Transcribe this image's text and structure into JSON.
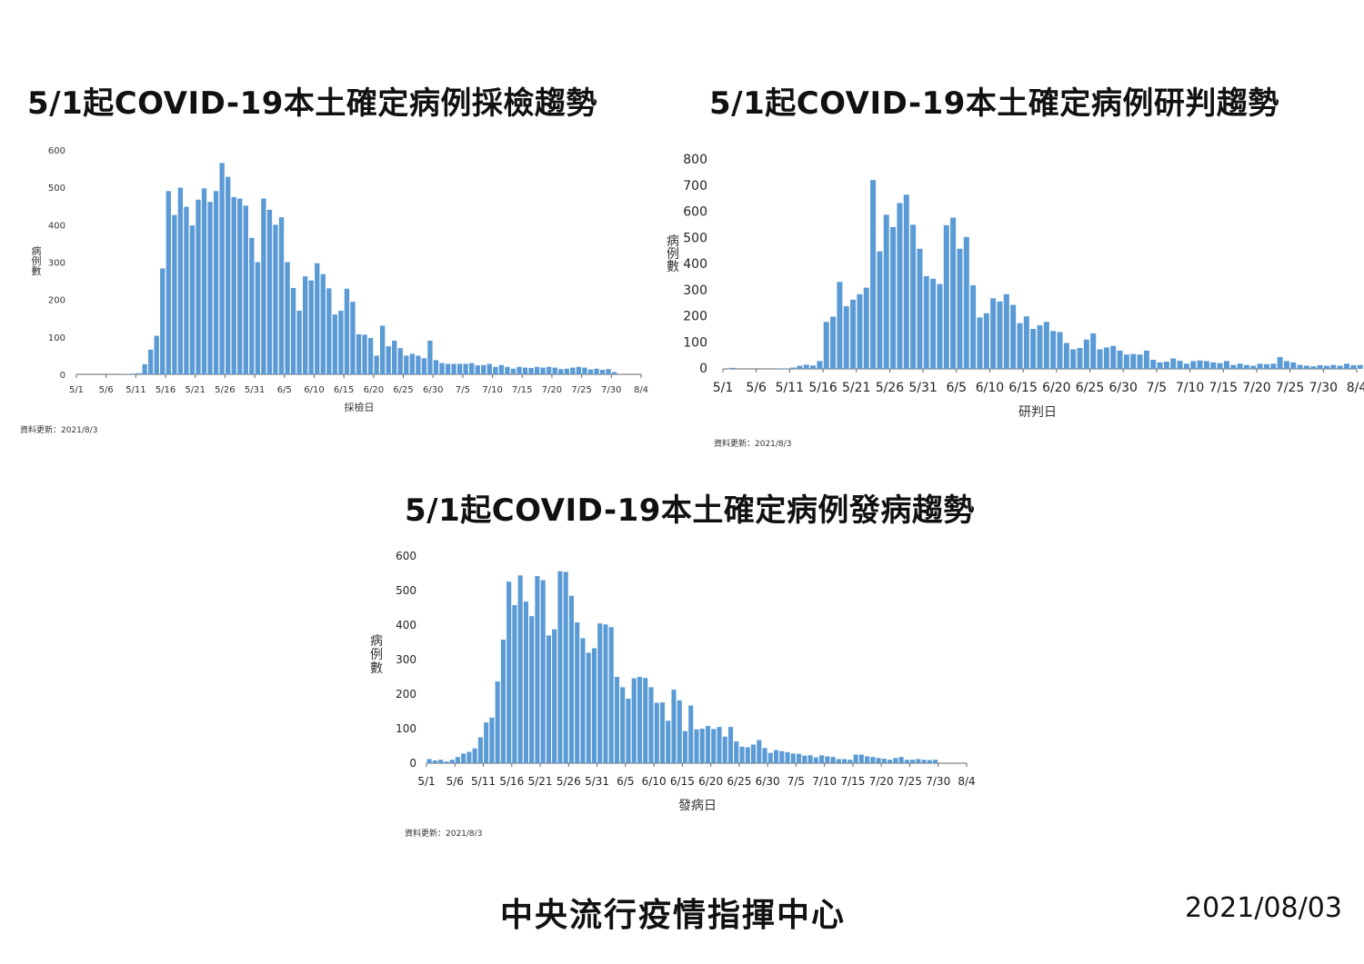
{
  "page": {
    "footer_org": "中央流行疫情指揮中心",
    "footer_date": "2021/08/03",
    "bar_color": "#5b9bd5"
  },
  "chart_data": [
    {
      "type": "bar",
      "title": "5/1起COVID-19本土確定病例採檢趨勢",
      "xlabel": "採檢日",
      "ylabel": "病例數",
      "ylim": [
        0,
        600
      ],
      "yticks": [
        0,
        100,
        200,
        300,
        400,
        500,
        600
      ],
      "xtick_labels": [
        "5/1",
        "5/6",
        "5/11",
        "5/16",
        "5/21",
        "5/26",
        "5/31",
        "6/5",
        "6/10",
        "6/15",
        "6/20",
        "6/25",
        "6/30",
        "7/5",
        "7/10",
        "7/15",
        "7/20",
        "7/25",
        "7/30",
        "8/4"
      ],
      "updated": "資料更新：2021/8/3",
      "start_date": "5/1",
      "values": [
        0,
        0,
        0,
        0,
        0,
        0,
        0,
        0,
        1,
        2,
        3,
        27,
        66,
        103,
        283,
        490,
        426,
        499,
        448,
        398,
        467,
        497,
        461,
        490,
        565,
        528,
        474,
        470,
        451,
        365,
        300,
        470,
        440,
        400,
        420,
        300,
        231,
        170,
        262,
        251,
        297,
        268,
        230,
        160,
        170,
        229,
        194,
        107,
        106,
        97,
        50,
        130,
        75,
        90,
        70,
        50,
        55,
        50,
        43,
        90,
        38,
        30,
        28,
        28,
        28,
        28,
        30,
        24,
        25,
        28,
        20,
        25,
        20,
        15,
        20,
        18,
        17,
        20,
        18,
        20,
        18,
        14,
        15,
        18,
        20,
        18,
        13,
        15,
        12,
        14,
        6
      ]
    },
    {
      "type": "bar",
      "title": "5/1起COVID-19本土確定病例研判趨勢",
      "xlabel": "研判日",
      "ylabel": "病例數",
      "ylim": [
        0,
        800
      ],
      "yticks": [
        0,
        100,
        200,
        300,
        400,
        500,
        600,
        700,
        800
      ],
      "xtick_labels": [
        "5/1",
        "5/6",
        "5/11",
        "5/16",
        "5/21",
        "5/26",
        "5/31",
        "6/5",
        "6/10",
        "6/15",
        "6/20",
        "6/25",
        "6/30",
        "7/5",
        "7/10",
        "7/15",
        "7/20",
        "7/25",
        "7/30",
        "8/4"
      ],
      "updated": "資料更新：2021/8/3",
      "start_date": "5/1",
      "values": [
        0,
        4,
        0,
        0,
        0,
        0,
        0,
        0,
        2,
        2,
        5,
        12,
        16,
        13,
        30,
        180,
        200,
        333,
        240,
        265,
        286,
        311,
        723,
        450,
        590,
        543,
        635,
        667,
        552,
        460,
        355,
        345,
        325,
        550,
        579,
        460,
        505,
        320,
        197,
        213,
        270,
        258,
        286,
        245,
        175,
        201,
        153,
        167,
        180,
        145,
        141,
        99,
        75,
        80,
        112,
        136,
        75,
        82,
        88,
        70,
        55,
        57,
        55,
        70,
        35,
        25,
        28,
        40,
        31,
        20,
        30,
        32,
        30,
        25,
        22,
        30,
        15,
        20,
        15,
        12,
        20,
        18,
        20,
        45,
        30,
        25,
        15,
        12,
        10,
        14,
        12,
        15,
        12,
        20,
        14,
        15,
        10,
        14,
        13,
        15,
        5
      ]
    },
    {
      "type": "bar",
      "title": "5/1起COVID-19本土確定病例發病趨勢",
      "xlabel": "發病日",
      "ylabel": "病例數",
      "ylim": [
        0,
        600
      ],
      "yticks": [
        0,
        100,
        200,
        300,
        400,
        500,
        600
      ],
      "xtick_labels": [
        "5/1",
        "5/6",
        "5/11",
        "5/16",
        "5/21",
        "5/26",
        "5/31",
        "6/5",
        "6/10",
        "6/15",
        "6/20",
        "6/25",
        "6/30",
        "7/5",
        "7/10",
        "7/15",
        "7/20",
        "7/25",
        "7/30",
        "8/4"
      ],
      "updated": "資料更新：2021/8/3",
      "start_date": "5/1",
      "values": [
        12,
        8,
        10,
        5,
        10,
        18,
        28,
        33,
        43,
        75,
        118,
        132,
        237,
        358,
        526,
        458,
        544,
        468,
        426,
        542,
        530,
        370,
        388,
        556,
        554,
        485,
        408,
        362,
        320,
        333,
        405,
        402,
        394,
        250,
        220,
        187,
        246,
        250,
        247,
        220,
        175,
        176,
        123,
        213,
        182,
        93,
        167,
        98,
        100,
        108,
        99,
        105,
        77,
        105,
        63,
        48,
        46,
        54,
        67,
        44,
        30,
        38,
        35,
        32,
        28,
        27,
        22,
        23,
        17,
        23,
        20,
        18,
        12,
        12,
        10,
        25,
        25,
        20,
        18,
        15,
        13,
        10,
        15,
        18,
        10,
        10,
        12,
        10,
        9,
        10
      ]
    }
  ]
}
